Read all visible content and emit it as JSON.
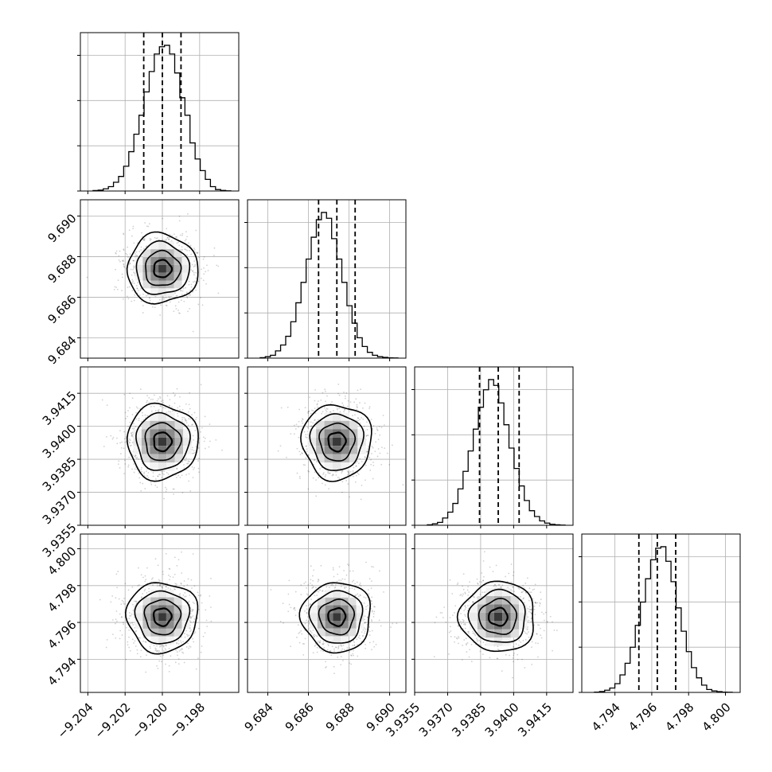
{
  "chart_data": {
    "type": "corner",
    "grid": true,
    "colors": {
      "line": "#000000",
      "scatter": "#000000",
      "grid": "#b0b0b0",
      "density_dark": "#1a1a1a",
      "density_light": "#f5f5f5"
    },
    "parameters": [
      {
        "median": -9.2,
        "q16": -9.201,
        "q84": -9.199,
        "ticks": [
          "-9.204",
          "-9.202",
          "-9.200",
          "-9.198"
        ],
        "tick_values": [
          -9.204,
          -9.202,
          -9.2,
          -9.198
        ],
        "range": [
          -9.2044,
          -9.1959
        ]
      },
      {
        "median": 9.6874,
        "q16": 9.6865,
        "q84": 9.6883,
        "ticks": [
          "9.684",
          "9.686",
          "9.688",
          "9.690"
        ],
        "tick_values": [
          9.684,
          9.686,
          9.688,
          9.69
        ],
        "range": [
          9.683,
          9.6908
        ]
      },
      {
        "median": 3.9393,
        "q16": 3.93845,
        "q84": 3.94025,
        "ticks": [
          "3.9355",
          "3.9370",
          "3.9385",
          "3.9400",
          "3.9415"
        ],
        "tick_values": [
          3.9355,
          3.937,
          3.9385,
          3.94,
          3.9415
        ],
        "range": [
          3.9355,
          3.9427
        ]
      },
      {
        "median": 4.7963,
        "q16": 4.7953,
        "q84": 4.7973,
        "ticks": [
          "4.794",
          "4.796",
          "4.798",
          "4.800"
        ],
        "tick_values": [
          4.794,
          4.796,
          4.798,
          4.8
        ],
        "range": [
          4.7922,
          4.8008
        ]
      }
    ],
    "histogram_density": [
      [
        0.003,
        0.006,
        0.015,
        0.03,
        0.06,
        0.1,
        0.17,
        0.27,
        0.39,
        0.52,
        0.68,
        0.82,
        0.94,
        0.99,
        1.0,
        0.94,
        0.81,
        0.64,
        0.52,
        0.33,
        0.22,
        0.14,
        0.08,
        0.03,
        0.01,
        0.004,
        0.001
      ],
      [
        0.003,
        0.01,
        0.02,
        0.05,
        0.09,
        0.15,
        0.25,
        0.38,
        0.52,
        0.68,
        0.83,
        0.95,
        1.0,
        0.96,
        0.82,
        0.68,
        0.52,
        0.36,
        0.24,
        0.14,
        0.08,
        0.04,
        0.02,
        0.01,
        0.005,
        0.002,
        0.001
      ],
      [
        0.003,
        0.01,
        0.02,
        0.05,
        0.09,
        0.15,
        0.25,
        0.37,
        0.51,
        0.66,
        0.81,
        0.93,
        1.0,
        0.96,
        0.84,
        0.69,
        0.53,
        0.39,
        0.27,
        0.17,
        0.1,
        0.06,
        0.03,
        0.015,
        0.007,
        0.003,
        0.001
      ],
      [
        0.002,
        0.006,
        0.015,
        0.03,
        0.06,
        0.12,
        0.2,
        0.31,
        0.46,
        0.62,
        0.78,
        0.91,
        0.99,
        1.0,
        0.9,
        0.76,
        0.58,
        0.42,
        0.28,
        0.17,
        0.1,
        0.05,
        0.02,
        0.01,
        0.005,
        0.002,
        0.001
      ]
    ],
    "contour_levels": [
      0.5,
      1.0,
      1.5,
      2.0
    ]
  }
}
